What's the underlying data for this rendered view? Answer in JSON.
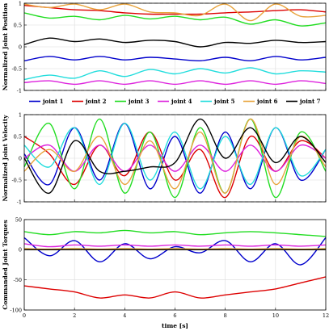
{
  "chart_data": [
    {
      "type": "line",
      "ylabel": "Normalized Joint Position",
      "xlim": [
        0,
        12
      ],
      "ylim": [
        -1,
        1
      ],
      "yticks": [
        -1,
        -0.5,
        0,
        0.5,
        1
      ],
      "bounds": [
        -1,
        1
      ],
      "series": [
        {
          "name": "joint 1",
          "color": "#0000cc",
          "x": [
            0,
            1,
            2,
            3,
            4,
            5,
            6,
            7,
            8,
            9,
            10,
            11,
            12
          ],
          "y": [
            -0.32,
            -0.22,
            -0.3,
            -0.22,
            -0.3,
            -0.24,
            -0.28,
            -0.32,
            -0.24,
            -0.32,
            -0.22,
            -0.3,
            -0.24
          ]
        },
        {
          "name": "joint 2",
          "color": "#dd0000",
          "x": [
            0,
            1,
            2,
            3,
            4,
            5,
            6,
            7,
            8,
            9,
            10,
            11,
            12
          ],
          "y": [
            0.95,
            0.9,
            0.85,
            0.83,
            0.78,
            0.75,
            0.75,
            0.75,
            0.78,
            0.8,
            0.83,
            0.85,
            0.8
          ]
        },
        {
          "name": "joint 3",
          "color": "#22dd22",
          "x": [
            0,
            1,
            2,
            3,
            4,
            5,
            6,
            7,
            8,
            9,
            10,
            11,
            12
          ],
          "y": [
            0.78,
            0.66,
            0.7,
            0.62,
            0.72,
            0.64,
            0.7,
            0.62,
            0.68,
            0.52,
            0.62,
            0.48,
            0.55
          ]
        },
        {
          "name": "joint 4",
          "color": "#dd22dd",
          "x": [
            0,
            1,
            2,
            3,
            4,
            5,
            6,
            7,
            8,
            9,
            10,
            11,
            12
          ],
          "y": [
            -0.82,
            -0.78,
            -0.86,
            -0.78,
            -0.86,
            -0.78,
            -0.86,
            -0.78,
            -0.86,
            -0.78,
            -0.86,
            -0.78,
            -0.84
          ]
        },
        {
          "name": "joint 5",
          "color": "#22dddd",
          "x": [
            0,
            1,
            2,
            3,
            4,
            5,
            6,
            7,
            8,
            9,
            10,
            11,
            12
          ],
          "y": [
            -0.75,
            -0.65,
            -0.72,
            -0.55,
            -0.68,
            -0.52,
            -0.62,
            -0.5,
            -0.6,
            -0.48,
            -0.62,
            -0.55,
            -0.58
          ]
        },
        {
          "name": "joint 6",
          "color": "#e8a33c",
          "x": [
            0,
            1,
            2,
            3,
            4,
            5,
            6,
            7,
            8,
            9,
            10,
            11,
            12
          ],
          "y": [
            0.98,
            0.9,
            0.98,
            0.85,
            0.98,
            0.8,
            0.78,
            0.72,
            0.98,
            0.6,
            0.98,
            0.7,
            0.72
          ]
        },
        {
          "name": "joint 7",
          "color": "#000000",
          "x": [
            0,
            1,
            2,
            3,
            4,
            5,
            6,
            7,
            8,
            9,
            10,
            11,
            12
          ],
          "y": [
            0.05,
            0.2,
            0.12,
            0.18,
            0.1,
            0.15,
            0.12,
            0.0,
            0.1,
            0.08,
            0.15,
            0.1,
            0.12
          ]
        }
      ]
    },
    {
      "type": "line",
      "ylabel": "Normalized Joint Velocity",
      "xlim": [
        0,
        12
      ],
      "ylim": [
        -1,
        1
      ],
      "yticks": [
        -1,
        -0.5,
        0,
        0.5,
        1
      ],
      "bounds": [
        -1,
        1
      ],
      "series": [
        {
          "name": "joint 1",
          "color": "#0000cc",
          "x": [
            0,
            1,
            2,
            3,
            4,
            5,
            6,
            7,
            8,
            9,
            10,
            11,
            12
          ],
          "y": [
            0.1,
            -0.6,
            0.7,
            -0.5,
            0.8,
            -0.7,
            0.5,
            -0.8,
            0.6,
            -0.7,
            0.7,
            -0.5,
            0.2
          ]
        },
        {
          "name": "joint 2",
          "color": "#dd0000",
          "x": [
            0,
            1,
            2,
            3,
            4,
            5,
            6,
            7,
            8,
            9,
            10,
            11,
            12
          ],
          "y": [
            0.5,
            0.1,
            -0.6,
            0.3,
            -0.4,
            0.6,
            -0.5,
            0.2,
            -0.9,
            0.5,
            -0.3,
            0.4,
            0.0
          ]
        },
        {
          "name": "joint 3",
          "color": "#22dd22",
          "x": [
            0,
            1,
            2,
            3,
            4,
            5,
            6,
            7,
            8,
            9,
            10,
            11,
            12
          ],
          "y": [
            -0.2,
            0.8,
            -0.7,
            0.9,
            -0.8,
            0.6,
            -0.9,
            0.7,
            -0.8,
            0.9,
            -0.9,
            0.6,
            -0.3
          ]
        },
        {
          "name": "joint 4",
          "color": "#dd22dd",
          "x": [
            0,
            1,
            2,
            3,
            4,
            5,
            6,
            7,
            8,
            9,
            10,
            11,
            12
          ],
          "y": [
            0.0,
            0.3,
            -0.3,
            0.3,
            -0.3,
            0.3,
            -0.3,
            0.3,
            -0.3,
            0.3,
            -0.3,
            0.3,
            0.0
          ]
        },
        {
          "name": "joint 5",
          "color": "#22dddd",
          "x": [
            0,
            1,
            2,
            3,
            4,
            5,
            6,
            7,
            8,
            9,
            10,
            11,
            12
          ],
          "y": [
            0.3,
            -0.2,
            0.7,
            -0.6,
            0.8,
            -0.5,
            0.6,
            -0.7,
            0.5,
            -0.6,
            0.7,
            -0.4,
            0.2
          ]
        },
        {
          "name": "joint 6",
          "color": "#e8a33c",
          "x": [
            0,
            1,
            2,
            3,
            4,
            5,
            6,
            7,
            8,
            9,
            10,
            11,
            12
          ],
          "y": [
            -0.3,
            0.2,
            -0.3,
            0.5,
            -0.6,
            0.4,
            -0.7,
            0.6,
            -0.8,
            0.9,
            -0.6,
            0.5,
            -0.2
          ]
        },
        {
          "name": "joint 7",
          "color": "#000000",
          "x": [
            0,
            1,
            2,
            3,
            4,
            5,
            6,
            7,
            8,
            9,
            10,
            11,
            12
          ],
          "y": [
            0.0,
            -0.8,
            0.4,
            -0.3,
            -0.3,
            -0.2,
            -0.1,
            0.9,
            0.0,
            0.7,
            -0.1,
            0.5,
            -0.1
          ]
        }
      ]
    },
    {
      "type": "line",
      "ylabel": "Commanded Joint Torques",
      "xlabel": "time [s]",
      "xlim": [
        0,
        12
      ],
      "ylim": [
        -100,
        50
      ],
      "yticks": [
        -100,
        -50,
        0,
        50
      ],
      "xticks": [
        0,
        2,
        4,
        6,
        8,
        10,
        12
      ],
      "series": [
        {
          "name": "joint 1",
          "color": "#0000cc",
          "x": [
            0,
            1,
            2,
            3,
            4,
            5,
            6,
            7,
            8,
            9,
            10,
            11,
            12
          ],
          "y": [
            20,
            -10,
            15,
            -20,
            10,
            -15,
            5,
            -5,
            15,
            -20,
            10,
            -25,
            20
          ]
        },
        {
          "name": "joint 2",
          "color": "#dd0000",
          "x": [
            0,
            1,
            2,
            3,
            4,
            5,
            6,
            7,
            8,
            9,
            10,
            11,
            12
          ],
          "y": [
            -60,
            -65,
            -70,
            -80,
            -75,
            -80,
            -70,
            -80,
            -75,
            -70,
            -65,
            -55,
            -45
          ]
        },
        {
          "name": "joint 3",
          "color": "#22dd22",
          "x": [
            0,
            1,
            2,
            3,
            4,
            5,
            6,
            7,
            8,
            9,
            10,
            11,
            12
          ],
          "y": [
            30,
            25,
            30,
            28,
            32,
            28,
            30,
            25,
            28,
            30,
            28,
            25,
            22
          ]
        },
        {
          "name": "joint 4",
          "color": "#dd22dd",
          "x": [
            0,
            1,
            2,
            3,
            4,
            5,
            6,
            7,
            8,
            9,
            10,
            11,
            12
          ],
          "y": [
            10,
            5,
            8,
            6,
            8,
            6,
            8,
            6,
            8,
            6,
            8,
            6,
            8
          ]
        },
        {
          "name": "joint 5",
          "color": "#22dddd",
          "x": [
            0,
            1,
            2,
            3,
            4,
            5,
            6,
            7,
            8,
            9,
            10,
            11,
            12
          ],
          "y": [
            2,
            0,
            2,
            0,
            2,
            0,
            2,
            0,
            2,
            0,
            2,
            0,
            2
          ]
        },
        {
          "name": "joint 6",
          "color": "#e8a33c",
          "x": [
            0,
            1,
            2,
            3,
            4,
            5,
            6,
            7,
            8,
            9,
            10,
            11,
            12
          ],
          "y": [
            2,
            1,
            2,
            1,
            2,
            1,
            2,
            1,
            2,
            1,
            2,
            1,
            2
          ]
        },
        {
          "name": "joint 7",
          "color": "#000000",
          "x": [
            0,
            1,
            2,
            3,
            4,
            5,
            6,
            7,
            8,
            9,
            10,
            11,
            12
          ],
          "y": [
            0,
            0,
            0,
            0,
            0,
            0,
            0,
            0,
            0,
            0,
            0,
            0,
            0
          ]
        }
      ]
    }
  ]
}
